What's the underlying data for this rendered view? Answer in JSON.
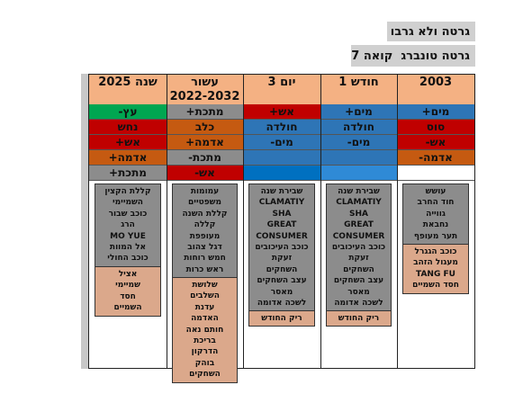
{
  "header": {
    "title": "גרטה ולא גרבו",
    "subtitle": "גרטה טונברג  קואה 7"
  },
  "table": {
    "columns": [
      {
        "header": [
          "2003"
        ],
        "elements": [
          {
            "label": "מים+",
            "color": "#2e75b6"
          },
          {
            "label": "סוס",
            "color": "#c00000"
          },
          {
            "label": "אש-",
            "color": "#c00000"
          },
          {
            "label": "אדמה-",
            "color": "#c55a11"
          },
          {
            "color": "#ffffff"
          }
        ],
        "gray": [
          "עושש",
          "חוד החרב",
          "גווייה",
          "נחבאת",
          "תער מעופף"
        ],
        "peach": [
          "כוכב הגגרל",
          "מעגול הזהב",
          "TANG FU",
          "חסד השמיים"
        ]
      },
      {
        "header": [
          "חודש 1"
        ],
        "elements": [
          {
            "label": "מים+",
            "color": "#2e75b6"
          },
          {
            "label": "חולדה",
            "color": "#2e75b6"
          },
          {
            "label": "מים-",
            "color": "#2e75b6"
          },
          {
            "color": "#2e75b6"
          },
          {
            "color": "#2f8ad6"
          }
        ],
        "gray": [
          "שבירת שנה",
          "CLAMATIY",
          "SHA",
          "GREAT",
          "CONSUMER",
          "כוכב העיכובים",
          "זעקת",
          "השחקים",
          "עצב השחקים",
          "מאסר",
          "לשכה אדומה"
        ],
        "peach": [
          "ריק החודש"
        ]
      },
      {
        "header": [
          "יום 3"
        ],
        "elements": [
          {
            "label": "אש+",
            "color": "#c00000"
          },
          {
            "label": "חולדה",
            "color": "#2e75b6"
          },
          {
            "label": "מים-",
            "color": "#2e75b6"
          },
          {
            "color": "#2e75b6"
          },
          {
            "color": "#0070c0"
          }
        ],
        "gray": [
          "שבירת שנה",
          "CLAMATIY",
          "SHA",
          "GREAT",
          "CONSUMER",
          "כוכב העיכובים",
          "זעקת",
          "השחקים",
          "עצב השחקים",
          "מאסר",
          "לשכה אדומה"
        ],
        "peach": [
          "ריק החודש"
        ]
      },
      {
        "header": [
          "עשור",
          "2022-2032"
        ],
        "elements": [
          {
            "label": "מתכת+",
            "color": "#8c8c8c"
          },
          {
            "label": "כלב",
            "color": "#c55a11"
          },
          {
            "label": "אדמה+",
            "color": "#c55a11"
          },
          {
            "label": "מתכת-",
            "color": "#8c8c8c"
          },
          {
            "label": "אש-",
            "color": "#c00000"
          }
        ],
        "gray": [
          "עמומות",
          "משפטיים",
          "קללת השנה",
          "קללה",
          "מעופפת",
          "דגל צהוב",
          "חמש רוחות",
          "ראש כרות"
        ],
        "peach": [
          "שלושת",
          "השלבים",
          "עדנת",
          "האדמה",
          "חותם נאה",
          "בריכת",
          "הדרקון",
          "בוהק",
          "השחקים"
        ]
      },
      {
        "header": [
          "שנה 2025"
        ],
        "elements": [
          {
            "label": "עץ-",
            "color": "#00a651"
          },
          {
            "label": "נחש",
            "color": "#c00000"
          },
          {
            "label": "אש+",
            "color": "#c00000"
          },
          {
            "label": "אדמה+",
            "color": "#c55a11"
          },
          {
            "label": "מתכת+",
            "color": "#8c8c8c"
          }
        ],
        "gray": [
          "קללת הקצין",
          "השמיימי",
          "כוכב שבור",
          "הרג",
          "MO YUE",
          "אל המוות",
          "כוכב החולי"
        ],
        "peach": [
          "אציל",
          "שמיימי",
          "חסד",
          "השמיים"
        ]
      }
    ]
  }
}
